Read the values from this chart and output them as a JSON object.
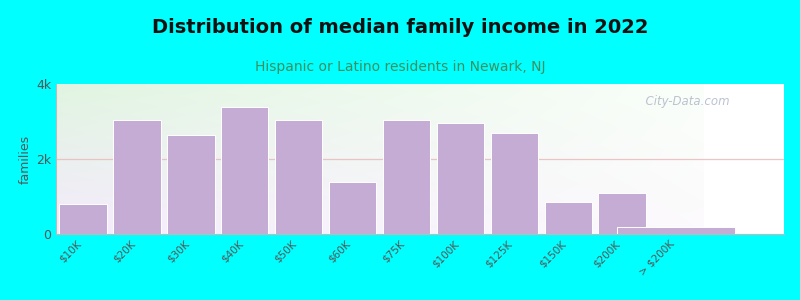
{
  "title": "Distribution of median family income in 2022",
  "subtitle": "Hispanic or Latino residents in Newark, NJ",
  "categories": [
    "$10K",
    "$20K",
    "$30K",
    "$40K",
    "$50K",
    "$60K",
    "$75K",
    "$100K",
    "$125K",
    "$150K",
    "$200K",
    "> $200K"
  ],
  "values": [
    800,
    3050,
    2650,
    3400,
    3050,
    1400,
    3050,
    2950,
    2700,
    850,
    1100,
    200
  ],
  "bar_color": "#c4acd4",
  "background_outer": "#00FFFF",
  "background_plot_topleft": "#ddf0e0",
  "background_plot_topright": "#eef8f0",
  "background_plot_bottom": "#f0eaf8",
  "title_color": "#111111",
  "subtitle_color": "#3a9060",
  "axis_label_color": "#555555",
  "tick_color": "#555555",
  "ylabel": "families",
  "ylim": [
    0,
    4000
  ],
  "yticks": [
    0,
    2000,
    4000
  ],
  "ytick_labels": [
    "0",
    "2k",
    "4k"
  ],
  "watermark": "  City-Data.com",
  "title_fontsize": 14,
  "subtitle_fontsize": 10,
  "hline_y": 2000,
  "hline_color": "#e8b8b8"
}
